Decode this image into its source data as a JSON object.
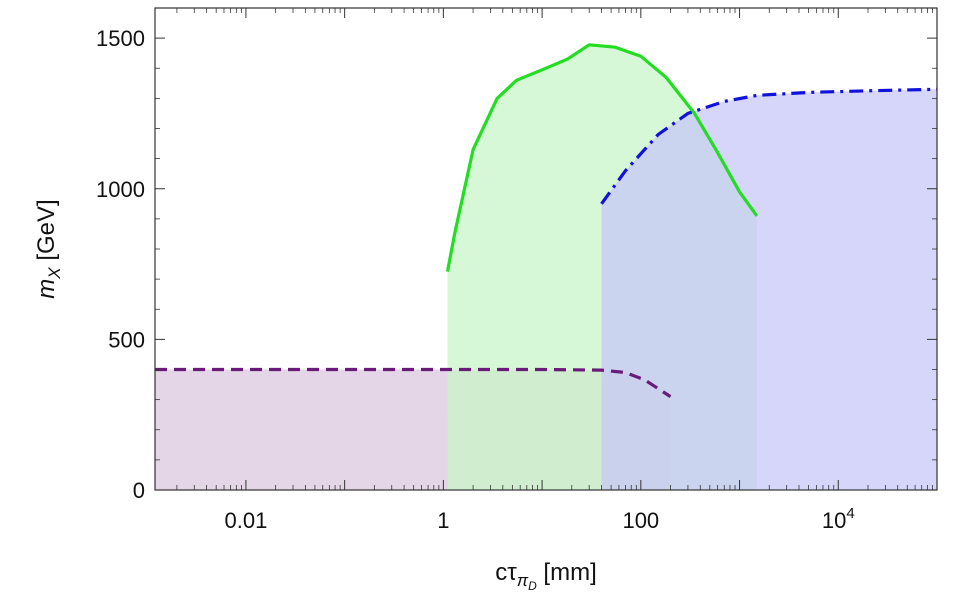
{
  "chart_data": {
    "type": "area",
    "title": "",
    "xscale": "log",
    "xlim": [
      0.0012,
      100000
    ],
    "ylim": [
      0,
      1600
    ],
    "grid": false,
    "legend": "none",
    "x_ticks": [
      {
        "value": 0.01,
        "label": "0.01"
      },
      {
        "value": 1,
        "label": "1"
      },
      {
        "value": 100,
        "label": "100"
      },
      {
        "value": 10000,
        "label": "10",
        "sup": "4"
      }
    ],
    "y_ticks": [
      {
        "value": 0,
        "label": "0"
      },
      {
        "value": 500,
        "label": "500"
      },
      {
        "value": 1000,
        "label": "1000"
      },
      {
        "value": 1500,
        "label": "1500"
      }
    ],
    "xlabel": {
      "base": "cτ",
      "sub": "π",
      "subsub": "D",
      "unit": " [mm]"
    },
    "ylabel": {
      "base": "m",
      "sub": "X",
      "unit": " [GeV]"
    },
    "series": [
      {
        "style": "dashed",
        "line_color": "#6a1b7a",
        "fill_color": "#d9c6dd",
        "points": [
          [
            0.0012,
            400
          ],
          [
            1,
            400
          ],
          [
            10,
            400
          ],
          [
            40,
            398
          ],
          [
            70,
            390
          ],
          [
            110,
            365
          ],
          [
            200,
            310
          ]
        ]
      },
      {
        "style": "solid",
        "line_color": "#22dd22",
        "fill_color": "#c8f5c8",
        "points": [
          [
            1.1,
            725
          ],
          [
            1.3,
            850
          ],
          [
            2,
            1130
          ],
          [
            3.5,
            1300
          ],
          [
            5.5,
            1360
          ],
          [
            10,
            1395
          ],
          [
            18,
            1430
          ],
          [
            30,
            1478
          ],
          [
            55,
            1470
          ],
          [
            100,
            1440
          ],
          [
            180,
            1370
          ],
          [
            350,
            1250
          ],
          [
            600,
            1120
          ],
          [
            1000,
            990
          ],
          [
            1500,
            910
          ]
        ]
      },
      {
        "style": "dashdot",
        "line_color": "#1111dd",
        "fill_color": "#c6c6f8",
        "points": [
          [
            40,
            950
          ],
          [
            70,
            1060
          ],
          [
            150,
            1180
          ],
          [
            300,
            1250
          ],
          [
            700,
            1290
          ],
          [
            1500,
            1310
          ],
          [
            5000,
            1320
          ],
          [
            20000,
            1325
          ],
          [
            100000,
            1330
          ]
        ]
      }
    ]
  }
}
